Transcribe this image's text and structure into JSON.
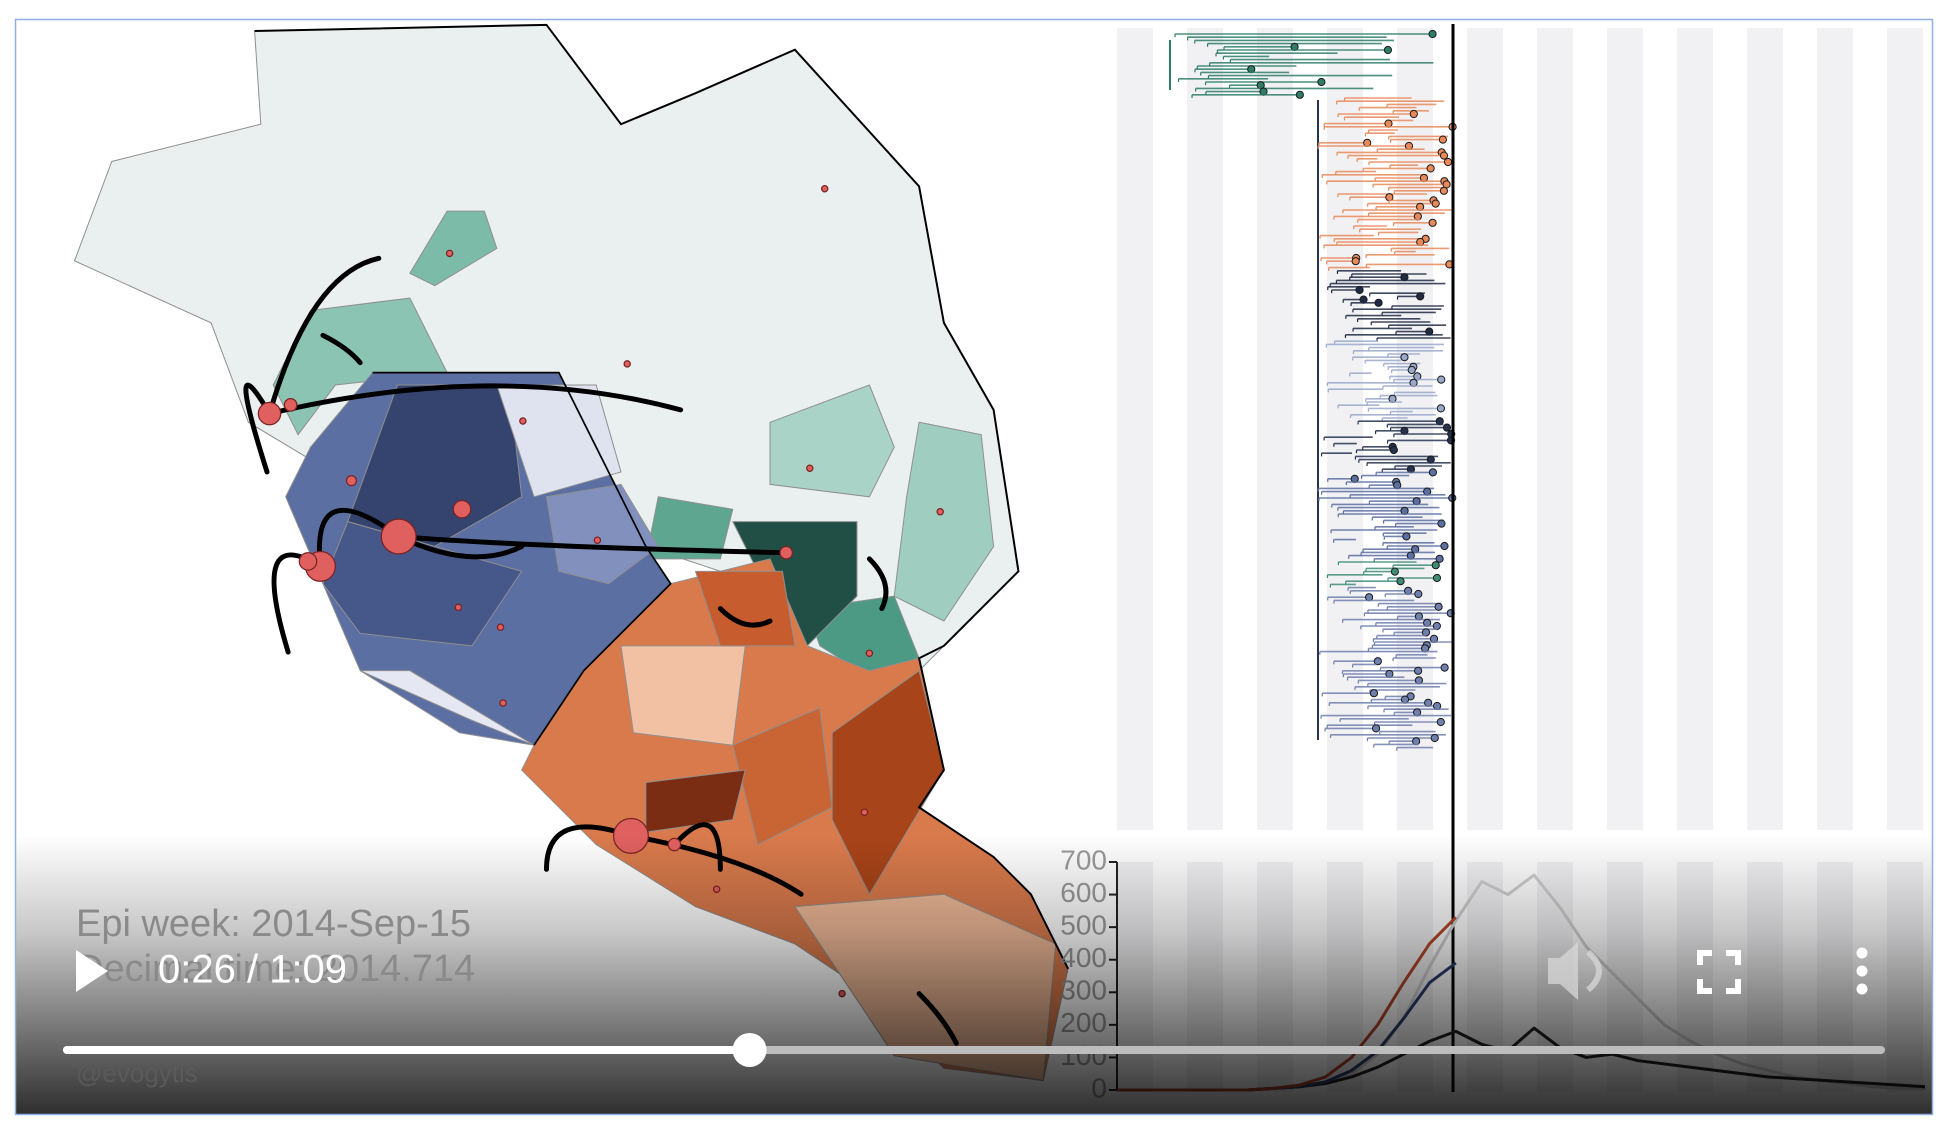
{
  "video": {
    "time_label": "0:26 / 1:09"
  },
  "overlay": {
    "epi_week": "Epi week: 2014-Sep-15",
    "decimal_time": "Decimal time: 2014.714",
    "credit": "@evogytis"
  },
  "chart_data": {
    "type": "line",
    "ylim": [
      0,
      700
    ],
    "yticks": [
      0,
      100,
      200,
      300,
      400,
      500,
      600,
      700
    ],
    "series": [
      {
        "color": "#cfcfcf",
        "values": [
          0,
          0,
          0,
          0,
          0,
          0,
          5,
          10,
          20,
          50,
          110,
          220,
          380,
          520,
          640,
          600,
          660,
          560,
          440,
          360,
          280,
          200,
          150,
          110,
          80,
          60,
          40,
          30,
          20,
          10,
          5,
          5
        ]
      },
      {
        "color": "#222222",
        "values": [
          0,
          0,
          0,
          0,
          0,
          0,
          5,
          10,
          20,
          40,
          70,
          110,
          150,
          180,
          140,
          120,
          190,
          130,
          100,
          110,
          90,
          80,
          70,
          60,
          50,
          40,
          35,
          30,
          25,
          20,
          15,
          10
        ]
      },
      {
        "color": "#2c3e6b",
        "values": [
          0,
          0,
          0,
          0,
          0,
          0,
          5,
          10,
          25,
          60,
          120,
          220,
          330,
          390,
          null,
          null,
          null,
          null,
          null,
          null,
          null,
          null,
          null,
          null,
          null,
          null,
          null,
          null,
          null,
          null,
          null,
          null
        ]
      },
      {
        "color": "#b5482a",
        "values": [
          0,
          0,
          0,
          0,
          0,
          0,
          5,
          15,
          40,
          100,
          200,
          330,
          450,
          530,
          null,
          null,
          null,
          null,
          null,
          null,
          null,
          null,
          null,
          null,
          null,
          null,
          null,
          null,
          null,
          null,
          null,
          null
        ]
      }
    ]
  }
}
